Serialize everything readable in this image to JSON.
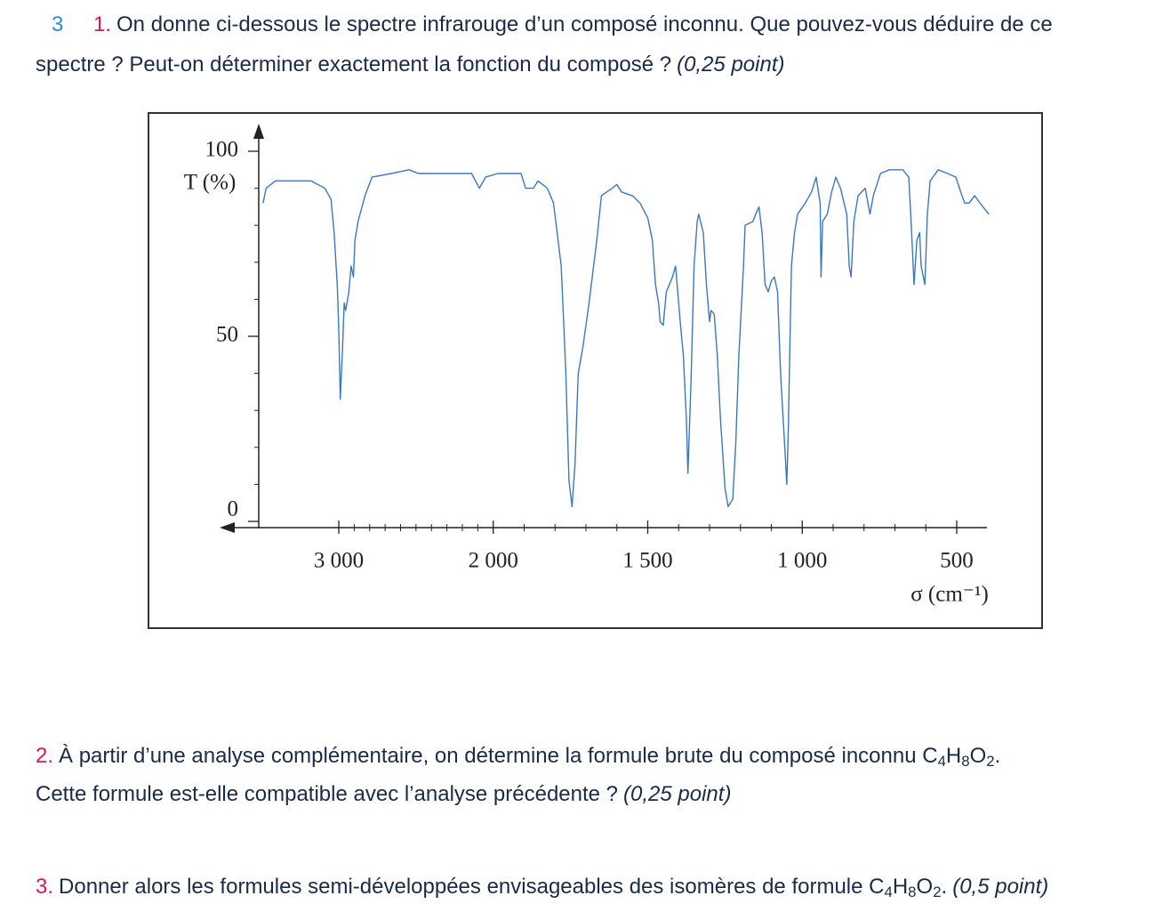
{
  "exercise_number": "3",
  "questions": [
    {
      "number": "1.",
      "lines": [
        [
          {
            "text": "On donne ci-dessous le spectre infrarouge d’un composé inconnu. Que pouvez-vous déduire de ce"
          }
        ],
        [
          {
            "text": "spectre ? Peut-on déterminer exactement la fonction du composé ?"
          }
        ]
      ],
      "points": "(0,25 point)"
    },
    {
      "number": "2.",
      "lines": [
        [
          {
            "text": "À partir d’une analyse complémentaire, on détermine la formule brute du composé inconnu "
          },
          {
            "el": "C",
            "sub": "4"
          },
          {
            "el": "H",
            "sub": "8"
          },
          {
            "el": "O",
            "sub": "2"
          },
          {
            "text": "."
          }
        ],
        [
          {
            "text": "Cette formule est-elle compatible avec l’analyse précédente ?"
          }
        ]
      ],
      "points": "(0,25 point)"
    },
    {
      "number": "3.",
      "lines": [
        [
          {
            "text": "Donner alors les formules semi-développées envisageables des isomères de formule "
          },
          {
            "el": "C",
            "sub": "4"
          },
          {
            "el": "H",
            "sub": "8"
          },
          {
            "el": "O",
            "sub": "2"
          },
          {
            "text": "."
          }
        ]
      ],
      "points": "(0,5 point)"
    }
  ],
  "chart_data": {
    "type": "line",
    "xlabel": "σ (cm⁻¹)",
    "ylabel": "T (%)",
    "x": [
      3490,
      3470,
      3410,
      3295,
      3180,
      3090,
      3050,
      3030,
      3010,
      3000,
      2990,
      2975,
      2965,
      2955,
      2935,
      2920,
      2905,
      2895,
      2875,
      2830,
      2785,
      2660,
      2545,
      2485,
      2255,
      2140,
      2090,
      2050,
      1985,
      1910,
      1895,
      1870,
      1855,
      1825,
      1805,
      1780,
      1765,
      1755,
      1745,
      1735,
      1725,
      1710,
      1690,
      1665,
      1650,
      1615,
      1600,
      1585,
      1550,
      1525,
      1500,
      1485,
      1475,
      1465,
      1460,
      1450,
      1440,
      1430,
      1420,
      1410,
      1400,
      1395,
      1385,
      1375,
      1370,
      1360,
      1350,
      1340,
      1335,
      1320,
      1310,
      1300,
      1295,
      1285,
      1275,
      1265,
      1250,
      1240,
      1225,
      1215,
      1205,
      1190,
      1185,
      1160,
      1150,
      1140,
      1130,
      1120,
      1110,
      1100,
      1090,
      1080,
      1070,
      1055,
      1050,
      1045,
      1035,
      1025,
      1015,
      990,
      970,
      955,
      942,
      939,
      934,
      919,
      905,
      891,
      876,
      856,
      848,
      842,
      833,
      819,
      796,
      781,
      770,
      747,
      718,
      675,
      655,
      646,
      638,
      629,
      620,
      615,
      603,
      595,
      586,
      560,
      529,
      503,
      483,
      474,
      460,
      442,
      425,
      396
    ],
    "series": [
      {
        "color": "#3a78c2",
        "values": [
          86,
          90,
          92,
          92,
          92,
          90,
          87,
          78,
          64,
          52,
          33,
          47,
          59,
          57,
          62,
          69,
          66,
          76,
          81,
          88,
          93,
          94,
          95,
          94,
          94,
          94,
          90,
          93,
          94,
          94,
          90,
          90,
          92,
          90,
          86,
          69,
          40,
          11,
          4,
          16,
          40,
          47,
          59,
          76,
          88,
          90,
          91,
          89,
          88,
          86,
          82,
          76,
          64,
          59,
          54,
          53,
          62,
          64,
          66,
          69,
          59,
          54,
          45,
          28,
          13,
          38,
          69,
          81,
          83,
          78,
          64,
          54,
          57,
          56,
          45,
          28,
          9,
          4,
          6,
          21,
          45,
          69,
          80,
          81,
          83,
          85,
          78,
          64,
          62,
          65,
          66,
          62,
          40,
          18,
          10,
          25,
          69,
          78,
          83,
          86,
          89,
          93,
          86,
          66,
          81,
          83,
          89,
          93,
          90,
          83,
          69,
          66,
          81,
          88,
          90,
          83,
          88,
          94,
          95,
          95,
          93,
          78,
          64,
          76,
          78,
          69,
          64,
          83,
          92,
          95,
          94,
          93,
          88,
          86,
          86,
          88,
          86,
          83
        ]
      }
    ],
    "xlim": [
      3520,
      390
    ],
    "xticks": [
      {
        "value": 3000,
        "label": "3 000"
      },
      {
        "value": 2000,
        "label": "2 000"
      },
      {
        "value": 1500,
        "label": "1 500"
      },
      {
        "value": 1000,
        "label": "1 000"
      },
      500
    ],
    "ylim": [
      0,
      106
    ],
    "yticks": [
      0,
      50,
      100
    ]
  }
}
